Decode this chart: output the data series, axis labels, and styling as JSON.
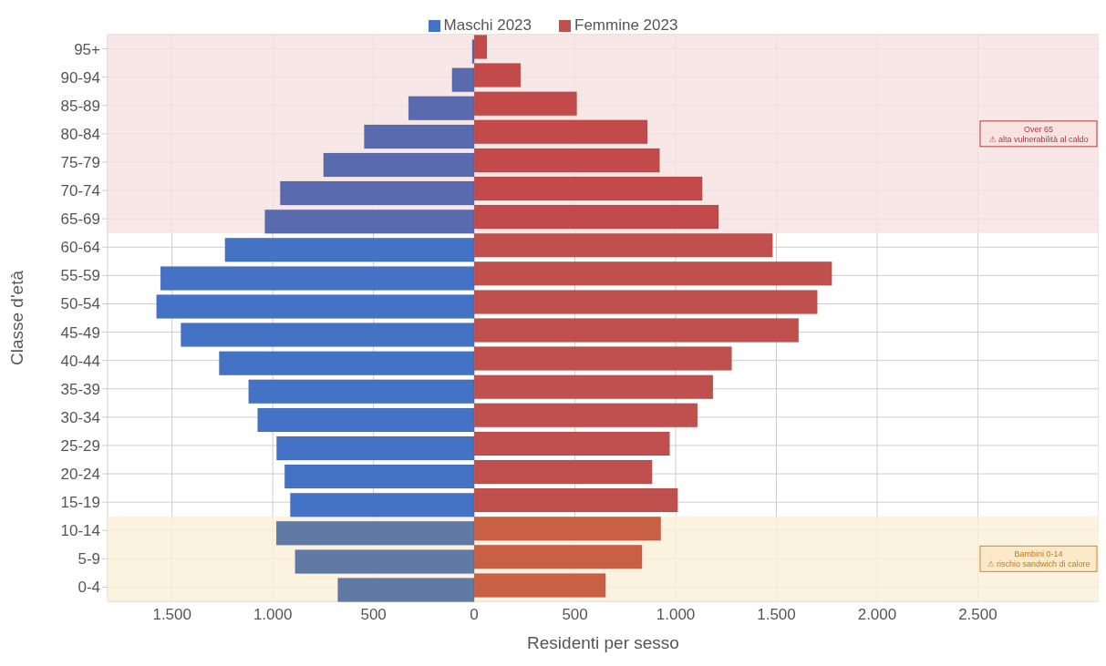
{
  "chart_data": {
    "type": "bar",
    "orientation": "horizontal",
    "xlabel": "Residenti per sesso",
    "ylabel": "Classe d'età",
    "categories": [
      "95+",
      "90-94",
      "85-89",
      "80-84",
      "75-79",
      "70-74",
      "65-69",
      "60-64",
      "55-59",
      "50-54",
      "45-49",
      "40-44",
      "35-39",
      "30-34",
      "25-29",
      "20-24",
      "15-19",
      "10-14",
      "5-9",
      "0-4"
    ],
    "series": [
      {
        "name": "Maschi 2023",
        "color": "#4472c4",
        "colors": [
          "#5a6aae",
          "#5a6aae",
          "#5a6aae",
          "#5a6aae",
          "#5a6aae",
          "#5a6aae",
          "#5a6aae",
          "#4472c4",
          "#4472c4",
          "#4472c4",
          "#4472c4",
          "#4472c4",
          "#4472c4",
          "#4472c4",
          "#4472c4",
          "#4472c4",
          "#4472c4",
          "#6079a5",
          "#6079a5",
          "#6079a5"
        ],
        "values": [
          -10,
          -110,
          -326,
          -546,
          -748,
          -963,
          -1039,
          -1237,
          -1557,
          -1577,
          -1456,
          -1266,
          -1120,
          -1075,
          -981,
          -941,
          -913,
          -982,
          -889,
          -677
        ]
      },
      {
        "name": "Femmine 2023",
        "color": "#c0504d",
        "colors": [
          "#c34a4a",
          "#c34a4a",
          "#c34a4a",
          "#c34a4a",
          "#c34a4a",
          "#c34a4a",
          "#c34a4a",
          "#c0504d",
          "#c0504d",
          "#c0504d",
          "#c0504d",
          "#c0504d",
          "#c0504d",
          "#c0504d",
          "#c0504d",
          "#c0504d",
          "#c0504d",
          "#c95f43",
          "#c95f43",
          "#c95f43"
        ],
        "values": [
          63,
          230,
          509,
          860,
          920,
          1132,
          1213,
          1481,
          1775,
          1703,
          1610,
          1278,
          1185,
          1108,
          970,
          883,
          1010,
          926,
          833,
          652
        ]
      }
    ],
    "xlim": [
      -1820,
      3100
    ],
    "xticks": [
      {
        "value": -1500,
        "label": "1.500"
      },
      {
        "value": -1000,
        "label": "1.000"
      },
      {
        "value": -500,
        "label": "500"
      },
      0,
      500,
      {
        "value": 1000,
        "label": "1.000"
      },
      {
        "value": 1500,
        "label": "1.500"
      },
      {
        "value": 2000,
        "label": "2.000"
      },
      {
        "value": 2500,
        "label": "2.500"
      }
    ],
    "bands": [
      {
        "axis": "y",
        "from": "95+",
        "to": "65-69",
        "label": "Over 65\n⚠ alta vulnerabilità al caldo",
        "color": "#f5e1e0"
      },
      {
        "axis": "y",
        "from": "10-14",
        "to": "0-4",
        "label": "Bambini 0-14\n⚠ rischio sandwich di calore",
        "color": "#fbefd8"
      }
    ],
    "grid": true,
    "legend": "top"
  }
}
